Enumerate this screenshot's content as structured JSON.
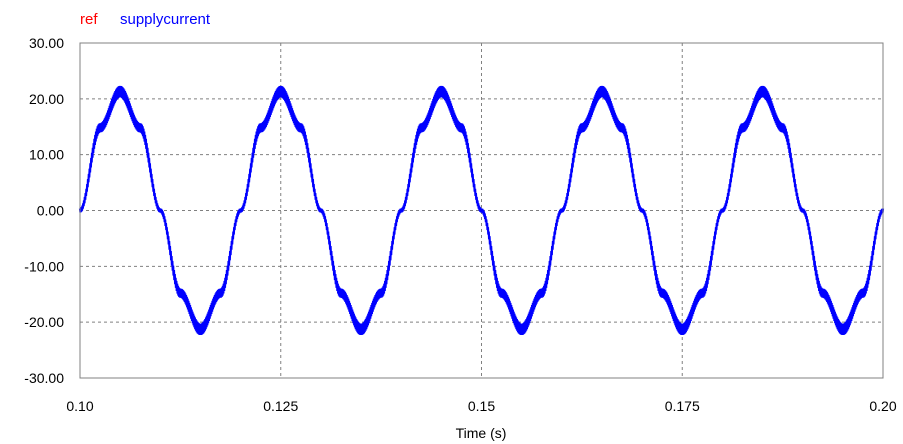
{
  "chart_data": {
    "type": "line",
    "title": "",
    "xlabel": "Time (s)",
    "ylabel": "",
    "xlim": [
      0.1,
      0.2
    ],
    "ylim": [
      -30,
      30
    ],
    "x_ticks": [
      {
        "value": 0.1,
        "label": "0.10"
      },
      {
        "value": 0.125,
        "label": "0.125"
      },
      {
        "value": 0.15,
        "label": "0.15"
      },
      {
        "value": 0.175,
        "label": "0.175"
      },
      {
        "value": 0.2,
        "label": "0.20"
      }
    ],
    "y_ticks": [
      {
        "value": 30,
        "label": "30.00"
      },
      {
        "value": 20,
        "label": "20.00"
      },
      {
        "value": 10,
        "label": "10.00"
      },
      {
        "value": 0,
        "label": "0.00"
      },
      {
        "value": -10,
        "label": "-10.00"
      },
      {
        "value": -20,
        "label": "-20.00"
      },
      {
        "value": -30,
        "label": "-30.00"
      }
    ],
    "grid": true,
    "legend_position": "top-left",
    "series": [
      {
        "name": "ref",
        "color": "#ff0000",
        "x": [
          0.1,
          0.1025,
          0.105,
          0.1075,
          0.11,
          0.1125,
          0.115,
          0.1175,
          0.12,
          0.1225,
          0.125,
          0.1275,
          0.13,
          0.1325,
          0.135,
          0.1375,
          0.14,
          0.1425,
          0.145,
          0.1475,
          0.15,
          0.1525,
          0.155,
          0.1575,
          0.16,
          0.1625,
          0.165,
          0.1675,
          0.17,
          0.1725,
          0.175,
          0.1775,
          0.18,
          0.1825,
          0.185,
          0.1875,
          0.19,
          0.1925,
          0.195,
          0.1975,
          0.2
        ],
        "y": [
          0,
          14.8,
          21,
          14.8,
          0,
          -14.8,
          -21,
          -14.8,
          0,
          14.8,
          21,
          14.8,
          0,
          -14.8,
          -21,
          -14.8,
          0,
          14.8,
          21,
          14.8,
          0,
          -14.8,
          -21,
          -14.8,
          0,
          14.8,
          21,
          14.8,
          0,
          -14.8,
          -21,
          -14.8,
          0,
          14.8,
          21,
          14.8,
          0,
          -14.8,
          -21,
          -14.8,
          0
        ]
      },
      {
        "name": "supplycurrent",
        "color": "#0000ff",
        "x": [
          0.1,
          0.1025,
          0.105,
          0.1075,
          0.11,
          0.1125,
          0.115,
          0.1175,
          0.12,
          0.1225,
          0.125,
          0.1275,
          0.13,
          0.1325,
          0.135,
          0.1375,
          0.14,
          0.1425,
          0.145,
          0.1475,
          0.15,
          0.1525,
          0.155,
          0.1575,
          0.16,
          0.1625,
          0.165,
          0.1675,
          0.17,
          0.1725,
          0.175,
          0.1775,
          0.18,
          0.1825,
          0.185,
          0.1875,
          0.19,
          0.1925,
          0.195,
          0.1975,
          0.2
        ],
        "y": [
          0,
          14.8,
          21.3,
          14.8,
          0,
          -14.8,
          -21.3,
          -14.8,
          0,
          14.8,
          21.3,
          14.8,
          0,
          -14.8,
          -21.3,
          -14.8,
          0,
          14.8,
          21.3,
          14.8,
          0,
          -14.8,
          -21.3,
          -14.8,
          0,
          14.8,
          21.3,
          14.8,
          0,
          -14.8,
          -21.3,
          -14.8,
          0,
          14.8,
          21.3,
          14.8,
          0,
          -14.8,
          -21.3,
          -14.8,
          0
        ]
      }
    ]
  }
}
